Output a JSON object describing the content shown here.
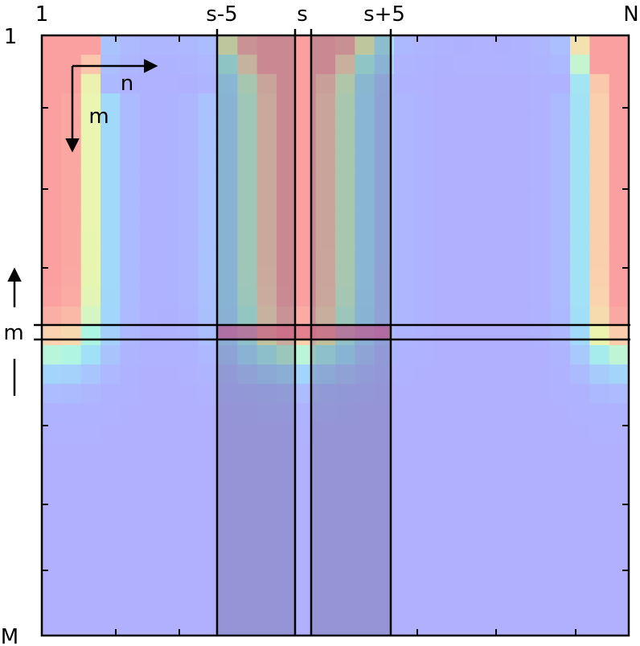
{
  "labels": {
    "top_left": "1",
    "top_s_minus": "s-5",
    "top_s": "s",
    "top_s_plus": "s+5",
    "top_right": "N",
    "left_top": "1",
    "left_m": "m",
    "left_bottom": "M",
    "arrow_n": "n",
    "arrow_m": "m"
  },
  "colors": {
    "background": "#b0b0ff",
    "shade_overlay": "#4a4a6e",
    "highlight_row": "#d0407a",
    "frame": "#000000"
  },
  "grid": {
    "columns": 30,
    "rows": 31
  }
}
